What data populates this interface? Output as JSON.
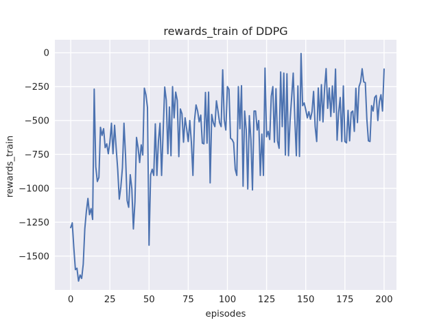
{
  "figure": {
    "background": "#ffffff"
  },
  "chart_data": {
    "type": "line",
    "title": "rewards_train of DDPG",
    "xlabel": "episodes",
    "ylabel": "rewards_train",
    "plot_bg": "#EAEAF2",
    "grid": true,
    "grid_color": "#FFFFFF",
    "tick_color": "#262626",
    "legend": "none",
    "x_ticks": [
      0,
      25,
      50,
      75,
      100,
      125,
      150,
      175,
      200
    ],
    "y_ticks": [
      0,
      -250,
      -500,
      -750,
      -1000,
      -1250,
      -1500
    ],
    "xlim": [
      -10.1,
      207.9
    ],
    "ylim": [
      -1750,
      96
    ],
    "series": [
      {
        "name": "rewards_train",
        "color": "#4C72B0",
        "x_start": 0,
        "x_step": 1,
        "values": [
          -1290,
          -1255,
          -1440,
          -1600,
          -1590,
          -1685,
          -1640,
          -1665,
          -1560,
          -1300,
          -1170,
          -1075,
          -1195,
          -1150,
          -1230,
          -268,
          -840,
          -950,
          -920,
          -550,
          -610,
          -560,
          -700,
          -672,
          -745,
          -660,
          -520,
          -745,
          -535,
          -700,
          -860,
          -1080,
          -990,
          -850,
          -520,
          -760,
          -1090,
          -1140,
          -900,
          -1000,
          -1300,
          -1100,
          -625,
          -700,
          -810,
          -680,
          -755,
          -261,
          -310,
          -404,
          -1420,
          -900,
          -860,
          -905,
          -525,
          -905,
          -650,
          -520,
          -905,
          -580,
          -253,
          -350,
          -745,
          -400,
          -760,
          -250,
          -480,
          -290,
          -350,
          -766,
          -415,
          -450,
          -660,
          -480,
          -560,
          -655,
          -500,
          -660,
          -905,
          -500,
          -385,
          -430,
          -510,
          -460,
          -667,
          -672,
          -293,
          -667,
          -290,
          -960,
          -455,
          -515,
          -545,
          -355,
          -430,
          -515,
          -545,
          -126,
          -495,
          -570,
          -250,
          -270,
          -631,
          -640,
          -664,
          -860,
          -905,
          -250,
          -560,
          -243,
          -985,
          -430,
          -570,
          -1005,
          -464,
          -640,
          -1012,
          -430,
          -430,
          -570,
          -500,
          -905,
          -600,
          -905,
          -113,
          -620,
          -580,
          -640,
          -320,
          -250,
          -660,
          -265,
          -650,
          -705,
          -142,
          -545,
          -150,
          -755,
          -155,
          -760,
          -500,
          -330,
          -150,
          -480,
          -760,
          -245,
          -765,
          -5,
          -390,
          -370,
          -420,
          -480,
          -435,
          -490,
          -435,
          -285,
          -545,
          -655,
          -260,
          -500,
          -235,
          -510,
          -265,
          -117,
          -410,
          -260,
          -470,
          -245,
          -440,
          -120,
          -645,
          -440,
          -330,
          -655,
          -245,
          -655,
          -665,
          -425,
          -650,
          -440,
          -430,
          -580,
          -262,
          -515,
          -250,
          -215,
          -118,
          -215,
          -220,
          -490,
          -650,
          -655,
          -390,
          -430,
          -330,
          -315,
          -500,
          -360,
          -310,
          -430,
          -120
        ]
      }
    ]
  }
}
